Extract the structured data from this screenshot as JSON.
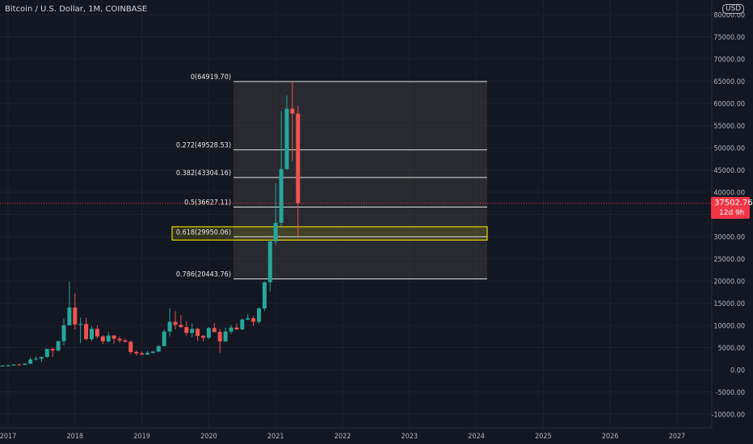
{
  "header": {
    "symbol_title": "Bitcoin / U.S. Dollar, 1M, COINBASE",
    "currency": "USD"
  },
  "price_tag": {
    "price": "37502.76",
    "countdown": "12d 9h"
  },
  "colors": {
    "background": "#131722",
    "up": "#26a69a",
    "down": "#ef5350",
    "grid": "#1e222d",
    "fib_fill": "#3a3a3a",
    "fib_line": "#e0e0e0",
    "highlight": "#e5d400",
    "price_line": "#f23645"
  },
  "chart_data": {
    "type": "candlestick",
    "x_ticks": [
      "2017",
      "2018",
      "2019",
      "2020",
      "2021",
      "2022",
      "2023",
      "2024",
      "2025",
      "2026",
      "2027"
    ],
    "y_ticks": [
      "80000.00",
      "75000.00",
      "70000.00",
      "65000.00",
      "60000.00",
      "55000.00",
      "50000.00",
      "45000.00",
      "40000.00",
      "35000.00",
      "30000.00",
      "25000.00",
      "20000.00",
      "15000.00",
      "10000.00",
      "5000.00",
      "0.00",
      "-5000.00",
      "-10000.00"
    ],
    "ylim": [
      -11500,
      82000
    ],
    "last_price": 37502.76,
    "fibonacci": [
      {
        "label": "0(64919.70)",
        "price": 64919.7
      },
      {
        "label": "0.272(49528.53)",
        "price": 49528.53
      },
      {
        "label": "0.382(43304.16)",
        "price": 43304.16
      },
      {
        "label": "0.5(36627.11)",
        "price": 36627.11
      },
      {
        "label": "0.618(29950.06)",
        "price": 29950.06
      },
      {
        "label": "0.786(20443.76)",
        "price": 20443.76
      }
    ],
    "highlight_zone": [
      29200,
      32200
    ],
    "candles": [
      {
        "t": "2016-09",
        "o": 610,
        "h": 630,
        "l": 590,
        "c": 610
      },
      {
        "t": "2016-10",
        "o": 610,
        "h": 720,
        "l": 600,
        "c": 700
      },
      {
        "t": "2016-11",
        "o": 700,
        "h": 760,
        "l": 690,
        "c": 740
      },
      {
        "t": "2016-12",
        "o": 740,
        "h": 970,
        "l": 740,
        "c": 960
      },
      {
        "t": "2017-01",
        "o": 960,
        "h": 1150,
        "l": 760,
        "c": 970
      },
      {
        "t": "2017-02",
        "o": 970,
        "h": 1200,
        "l": 920,
        "c": 1190
      },
      {
        "t": "2017-03",
        "o": 1190,
        "h": 1350,
        "l": 890,
        "c": 1070
      },
      {
        "t": "2017-04",
        "o": 1070,
        "h": 1400,
        "l": 1060,
        "c": 1350
      },
      {
        "t": "2017-05",
        "o": 1350,
        "h": 2800,
        "l": 1330,
        "c": 2300
      },
      {
        "t": "2017-06",
        "o": 2300,
        "h": 3000,
        "l": 2100,
        "c": 2500
      },
      {
        "t": "2017-07",
        "o": 2500,
        "h": 2900,
        "l": 1800,
        "c": 2870
      },
      {
        "t": "2017-08",
        "o": 2870,
        "h": 4700,
        "l": 2700,
        "c": 4700
      },
      {
        "t": "2017-09",
        "o": 4700,
        "h": 5000,
        "l": 2900,
        "c": 4340
      },
      {
        "t": "2017-10",
        "o": 4340,
        "h": 6500,
        "l": 4100,
        "c": 6450
      },
      {
        "t": "2017-11",
        "o": 6450,
        "h": 11500,
        "l": 5400,
        "c": 10000
      },
      {
        "t": "2017-12",
        "o": 10000,
        "h": 19900,
        "l": 10000,
        "c": 14000
      },
      {
        "t": "2018-01",
        "o": 14000,
        "h": 17200,
        "l": 9100,
        "c": 10200
      },
      {
        "t": "2018-02",
        "o": 10200,
        "h": 11800,
        "l": 6000,
        "c": 10300
      },
      {
        "t": "2018-03",
        "o": 10300,
        "h": 11700,
        "l": 6600,
        "c": 6900
      },
      {
        "t": "2018-04",
        "o": 6900,
        "h": 9800,
        "l": 6400,
        "c": 9200
      },
      {
        "t": "2018-05",
        "o": 9200,
        "h": 10000,
        "l": 7000,
        "c": 7500
      },
      {
        "t": "2018-06",
        "o": 7500,
        "h": 7800,
        "l": 5800,
        "c": 6400
      },
      {
        "t": "2018-07",
        "o": 6400,
        "h": 8500,
        "l": 6100,
        "c": 7700
      },
      {
        "t": "2018-08",
        "o": 7700,
        "h": 7800,
        "l": 5900,
        "c": 7000
      },
      {
        "t": "2018-09",
        "o": 7000,
        "h": 7400,
        "l": 6100,
        "c": 6600
      },
      {
        "t": "2018-10",
        "o": 6600,
        "h": 7000,
        "l": 6200,
        "c": 6300
      },
      {
        "t": "2018-11",
        "o": 6300,
        "h": 6600,
        "l": 3500,
        "c": 4000
      },
      {
        "t": "2018-12",
        "o": 4000,
        "h": 4400,
        "l": 3100,
        "c": 3700
      },
      {
        "t": "2019-01",
        "o": 3700,
        "h": 4100,
        "l": 3300,
        "c": 3400
      },
      {
        "t": "2019-02",
        "o": 3400,
        "h": 4200,
        "l": 3300,
        "c": 3800
      },
      {
        "t": "2019-03",
        "o": 3800,
        "h": 4200,
        "l": 3700,
        "c": 4100
      },
      {
        "t": "2019-04",
        "o": 4100,
        "h": 5600,
        "l": 4000,
        "c": 5300
      },
      {
        "t": "2019-05",
        "o": 5300,
        "h": 9000,
        "l": 5300,
        "c": 8600
      },
      {
        "t": "2019-06",
        "o": 8600,
        "h": 13900,
        "l": 7500,
        "c": 10800
      },
      {
        "t": "2019-07",
        "o": 10800,
        "h": 13200,
        "l": 9100,
        "c": 10100
      },
      {
        "t": "2019-08",
        "o": 10100,
        "h": 12300,
        "l": 9400,
        "c": 9600
      },
      {
        "t": "2019-09",
        "o": 9600,
        "h": 10900,
        "l": 7700,
        "c": 8300
      },
      {
        "t": "2019-10",
        "o": 8300,
        "h": 10400,
        "l": 7300,
        "c": 9200
      },
      {
        "t": "2019-11",
        "o": 9200,
        "h": 9500,
        "l": 6500,
        "c": 7600
      },
      {
        "t": "2019-12",
        "o": 7600,
        "h": 7800,
        "l": 6400,
        "c": 7200
      },
      {
        "t": "2020-01",
        "o": 7200,
        "h": 9600,
        "l": 6900,
        "c": 9400
      },
      {
        "t": "2020-02",
        "o": 9400,
        "h": 10500,
        "l": 8400,
        "c": 8500
      },
      {
        "t": "2020-03",
        "o": 8500,
        "h": 9200,
        "l": 3800,
        "c": 6400
      },
      {
        "t": "2020-04",
        "o": 6400,
        "h": 9500,
        "l": 6200,
        "c": 8600
      },
      {
        "t": "2020-05",
        "o": 8600,
        "h": 10100,
        "l": 8100,
        "c": 9500
      },
      {
        "t": "2020-06",
        "o": 9500,
        "h": 10400,
        "l": 8900,
        "c": 9100
      },
      {
        "t": "2020-07",
        "o": 9100,
        "h": 11500,
        "l": 8900,
        "c": 11300
      },
      {
        "t": "2020-08",
        "o": 11300,
        "h": 12500,
        "l": 11100,
        "c": 11600
      },
      {
        "t": "2020-09",
        "o": 11600,
        "h": 12100,
        "l": 9900,
        "c": 10800
      },
      {
        "t": "2020-10",
        "o": 10800,
        "h": 14100,
        "l": 10400,
        "c": 13800
      },
      {
        "t": "2020-11",
        "o": 13800,
        "h": 19900,
        "l": 13200,
        "c": 19700
      },
      {
        "t": "2020-12",
        "o": 19700,
        "h": 29300,
        "l": 17600,
        "c": 28900
      },
      {
        "t": "2021-01",
        "o": 28900,
        "h": 42000,
        "l": 28100,
        "c": 33100
      },
      {
        "t": "2021-02",
        "o": 33100,
        "h": 58300,
        "l": 32300,
        "c": 45200
      },
      {
        "t": "2021-03",
        "o": 45200,
        "h": 61800,
        "l": 45000,
        "c": 58800
      },
      {
        "t": "2021-04",
        "o": 58800,
        "h": 64900,
        "l": 47000,
        "c": 57700
      },
      {
        "t": "2021-05",
        "o": 57700,
        "h": 59500,
        "l": 30000,
        "c": 37500
      }
    ]
  }
}
